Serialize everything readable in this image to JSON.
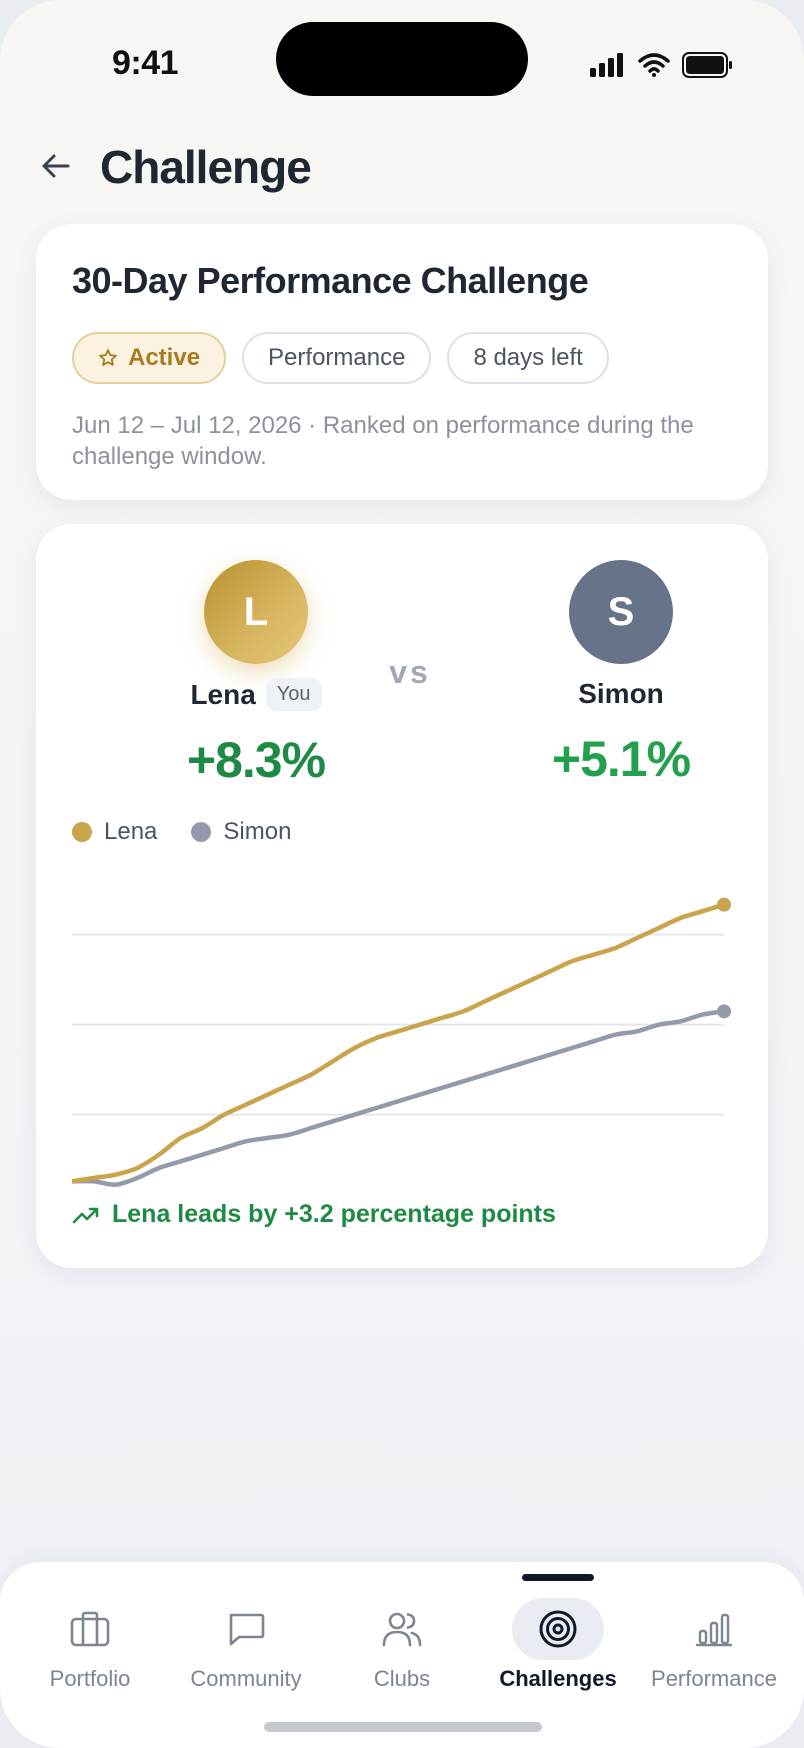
{
  "status_bar": {
    "time": "9:41"
  },
  "header": {
    "title": "Challenge"
  },
  "challenge": {
    "title": "30-Day Performance Challenge",
    "chips": {
      "active": "Active",
      "type": "Performance",
      "remaining": "8 days left"
    },
    "subtitle": "Jun 12 – Jul 12, 2026 · Ranked on performance during the challenge window."
  },
  "players": {
    "lena": {
      "initial": "L",
      "name": "Lena",
      "badge": "You",
      "pct": "+8.3%"
    },
    "simon": {
      "initial": "S",
      "name": "Simon",
      "pct": "+5.1%"
    },
    "vs": "vs"
  },
  "legend": {
    "lena": "Lena",
    "simon": "Simon"
  },
  "chart_data": {
    "type": "line",
    "title": "",
    "xlabel": "",
    "ylabel": "",
    "x": [
      0,
      1,
      2,
      3,
      4,
      5,
      6,
      7,
      8,
      9,
      10,
      11,
      12,
      13,
      14,
      15,
      16,
      17,
      18,
      19,
      20,
      21,
      22,
      23,
      24,
      25,
      26,
      27,
      28,
      29,
      30
    ],
    "ylim": [
      -0.5,
      8.8
    ],
    "grid": true,
    "series": [
      {
        "name": "Lena",
        "color": "#c9a44c",
        "values": [
          0.0,
          0.1,
          0.2,
          0.4,
          0.8,
          1.3,
          1.6,
          2.0,
          2.3,
          2.6,
          2.9,
          3.2,
          3.6,
          4.0,
          4.3,
          4.5,
          4.7,
          4.9,
          5.1,
          5.4,
          5.7,
          6.0,
          6.3,
          6.6,
          6.8,
          7.0,
          7.3,
          7.6,
          7.9,
          8.1,
          8.3
        ]
      },
      {
        "name": "Simon",
        "color": "#939bab",
        "values": [
          0.0,
          0.0,
          -0.1,
          0.1,
          0.4,
          0.6,
          0.8,
          1.0,
          1.2,
          1.3,
          1.4,
          1.6,
          1.8,
          2.0,
          2.2,
          2.4,
          2.6,
          2.8,
          3.0,
          3.2,
          3.4,
          3.6,
          3.8,
          4.0,
          4.2,
          4.4,
          4.5,
          4.7,
          4.8,
          5.0,
          5.1
        ]
      }
    ]
  },
  "lead": {
    "text": "Lena leads by +3.2 percentage points"
  },
  "colors": {
    "accent_gold": "#c9a44c",
    "positive_green": "#1f8a43",
    "simon_gray": "#939bab"
  },
  "tabs": [
    {
      "label": "Portfolio",
      "icon": "briefcase-icon"
    },
    {
      "label": "Community",
      "icon": "chat-bubble-icon"
    },
    {
      "label": "Clubs",
      "icon": "users-icon"
    },
    {
      "label": "Challenges",
      "icon": "target-icon",
      "active": true
    },
    {
      "label": "Performance",
      "icon": "bar-chart-icon"
    }
  ]
}
